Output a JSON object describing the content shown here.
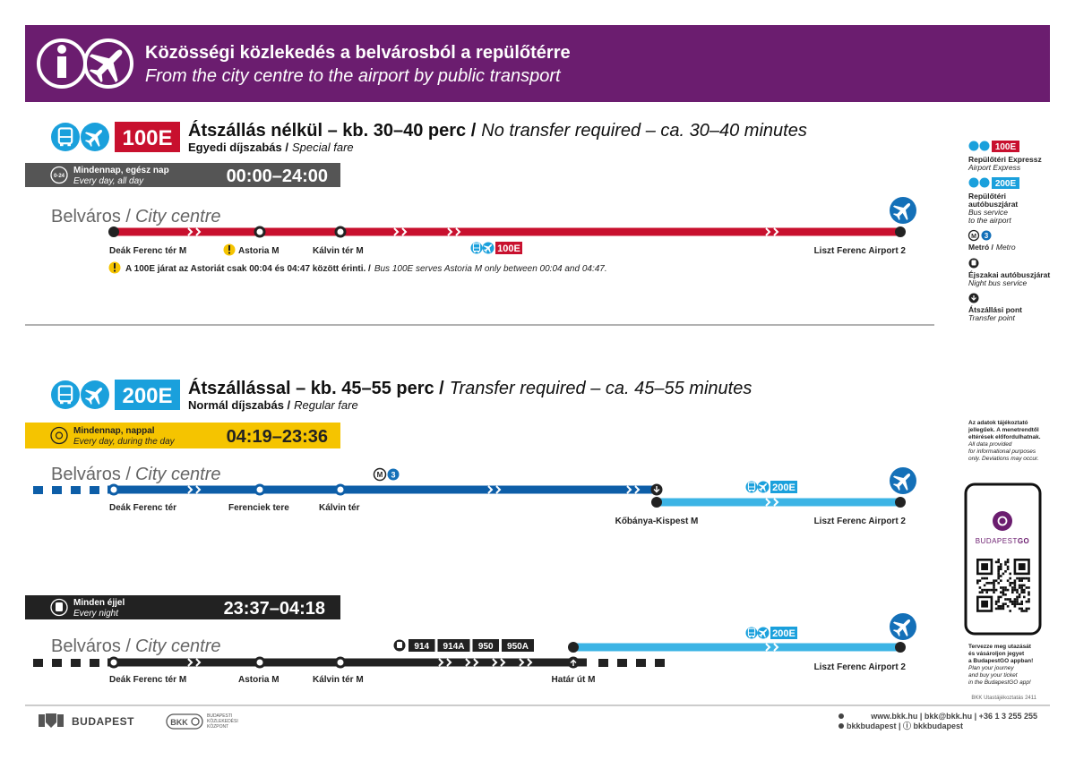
{
  "header": {
    "title": "Közösségi közlekedés a belvárosból a repülőtérre",
    "subtitle": "From the city centre to the airport by public transport"
  },
  "express": {
    "badge": "100E",
    "heading": "Átszállás nélkül – kb. 30–40 perc /",
    "heading_en": "No transfer required – ca. 30–40 minutes",
    "fare": "Egyedi díjszabás /",
    "fare_en": "Special fare",
    "schedule": {
      "icon": "0-24",
      "label": "Mindennap, egész nap",
      "label_en": "Every day, all day",
      "time": "00:00–24:00"
    },
    "origin": "Belváros /",
    "origin_en": "City centre",
    "stops": [
      "Deák Ferenc tér M",
      "Astoria M",
      "Kálvin tér M",
      "Liszt Ferenc Airport 2"
    ],
    "line_tag": "100E",
    "note": "A 100E járat az Astoriát csak 00:04 és 04:47 között érinti. /",
    "note_en": "Bus 100E serves Astoria M only between 00:04 and 04:47."
  },
  "transfer": {
    "badge": "200E",
    "heading": "Átszállással – kb. 45–55 perc /",
    "heading_en": "Transfer required – ca. 45–55 minutes",
    "fare": "Normál díjszabás /",
    "fare_en": "Regular fare",
    "day": {
      "label": "Mindennap, nappal",
      "label_en": "Every day, during the day",
      "time": "04:19–23:36",
      "origin": "Belváros /",
      "origin_en": "City centre",
      "metro_line": "3",
      "stops": [
        "Deák Ferenc tér",
        "Ferenciek tere",
        "Kálvin tér",
        "Kőbánya-Kispest M",
        "Liszt Ferenc Airport 2"
      ],
      "line_tag": "200E"
    },
    "night": {
      "label": "Minden éjjel",
      "label_en": "Every night",
      "time": "23:37–04:18",
      "origin": "Belváros /",
      "origin_en": "City centre",
      "buses": [
        "914",
        "914A",
        "950",
        "950A"
      ],
      "stops": [
        "Deák Ferenc tér M",
        "Astoria M",
        "Kálvin tér M",
        "Határ út M",
        "Liszt Ferenc Airport 2"
      ],
      "line_tag": "200E"
    }
  },
  "legend": [
    {
      "badge": "100E",
      "label": [
        "Repülőtéri Expressz"
      ],
      "label_en": [
        "Airport Express"
      ]
    },
    {
      "badge": "200E",
      "label": [
        "Repülőtéri",
        "autóbuszjárat"
      ],
      "label_en": [
        "Bus service",
        "to the airport"
      ]
    },
    {
      "badge": "3",
      "label": [
        "Metró /"
      ],
      "label_en": [
        "Metro"
      ]
    },
    {
      "label": [
        "Éjszakai autóbuszjárat"
      ],
      "label_en": [
        "Night bus service"
      ]
    },
    {
      "label": [
        "Átszállási pont"
      ],
      "label_en": [
        "Transfer point"
      ]
    }
  ],
  "disclaimer": [
    "Az adatok tájékoztató",
    "jellegűek. A menetrendtől",
    "eltérések előfordulhatnak."
  ],
  "disclaimer_en": [
    "All data provided",
    "for informational purposes",
    "only. Deviations may occur."
  ],
  "app": {
    "name": "BUDAPEST",
    "name_bold": "GO",
    "prompt": [
      "Tervezze meg utazását",
      "és vásároljon jegyet",
      "a BudapestGO appban!"
    ],
    "prompt_en": [
      "Plan your journey",
      "and buy your ticket",
      "in the BudapestGO app!"
    ]
  },
  "code": "BKK Utastájékoztatás 2411",
  "footer": {
    "city": "BUDAPEST",
    "bkk": "BKK",
    "bkk_name": [
      "BUDAPESTI",
      "KÖZLEKEDÉSI",
      "KÖZPONT"
    ],
    "contact": "www.bkk.hu | bkk@bkk.hu | +36 1 3 255 255",
    "social": "bkkbudapest | ⓘ bkkbudapest"
  }
}
